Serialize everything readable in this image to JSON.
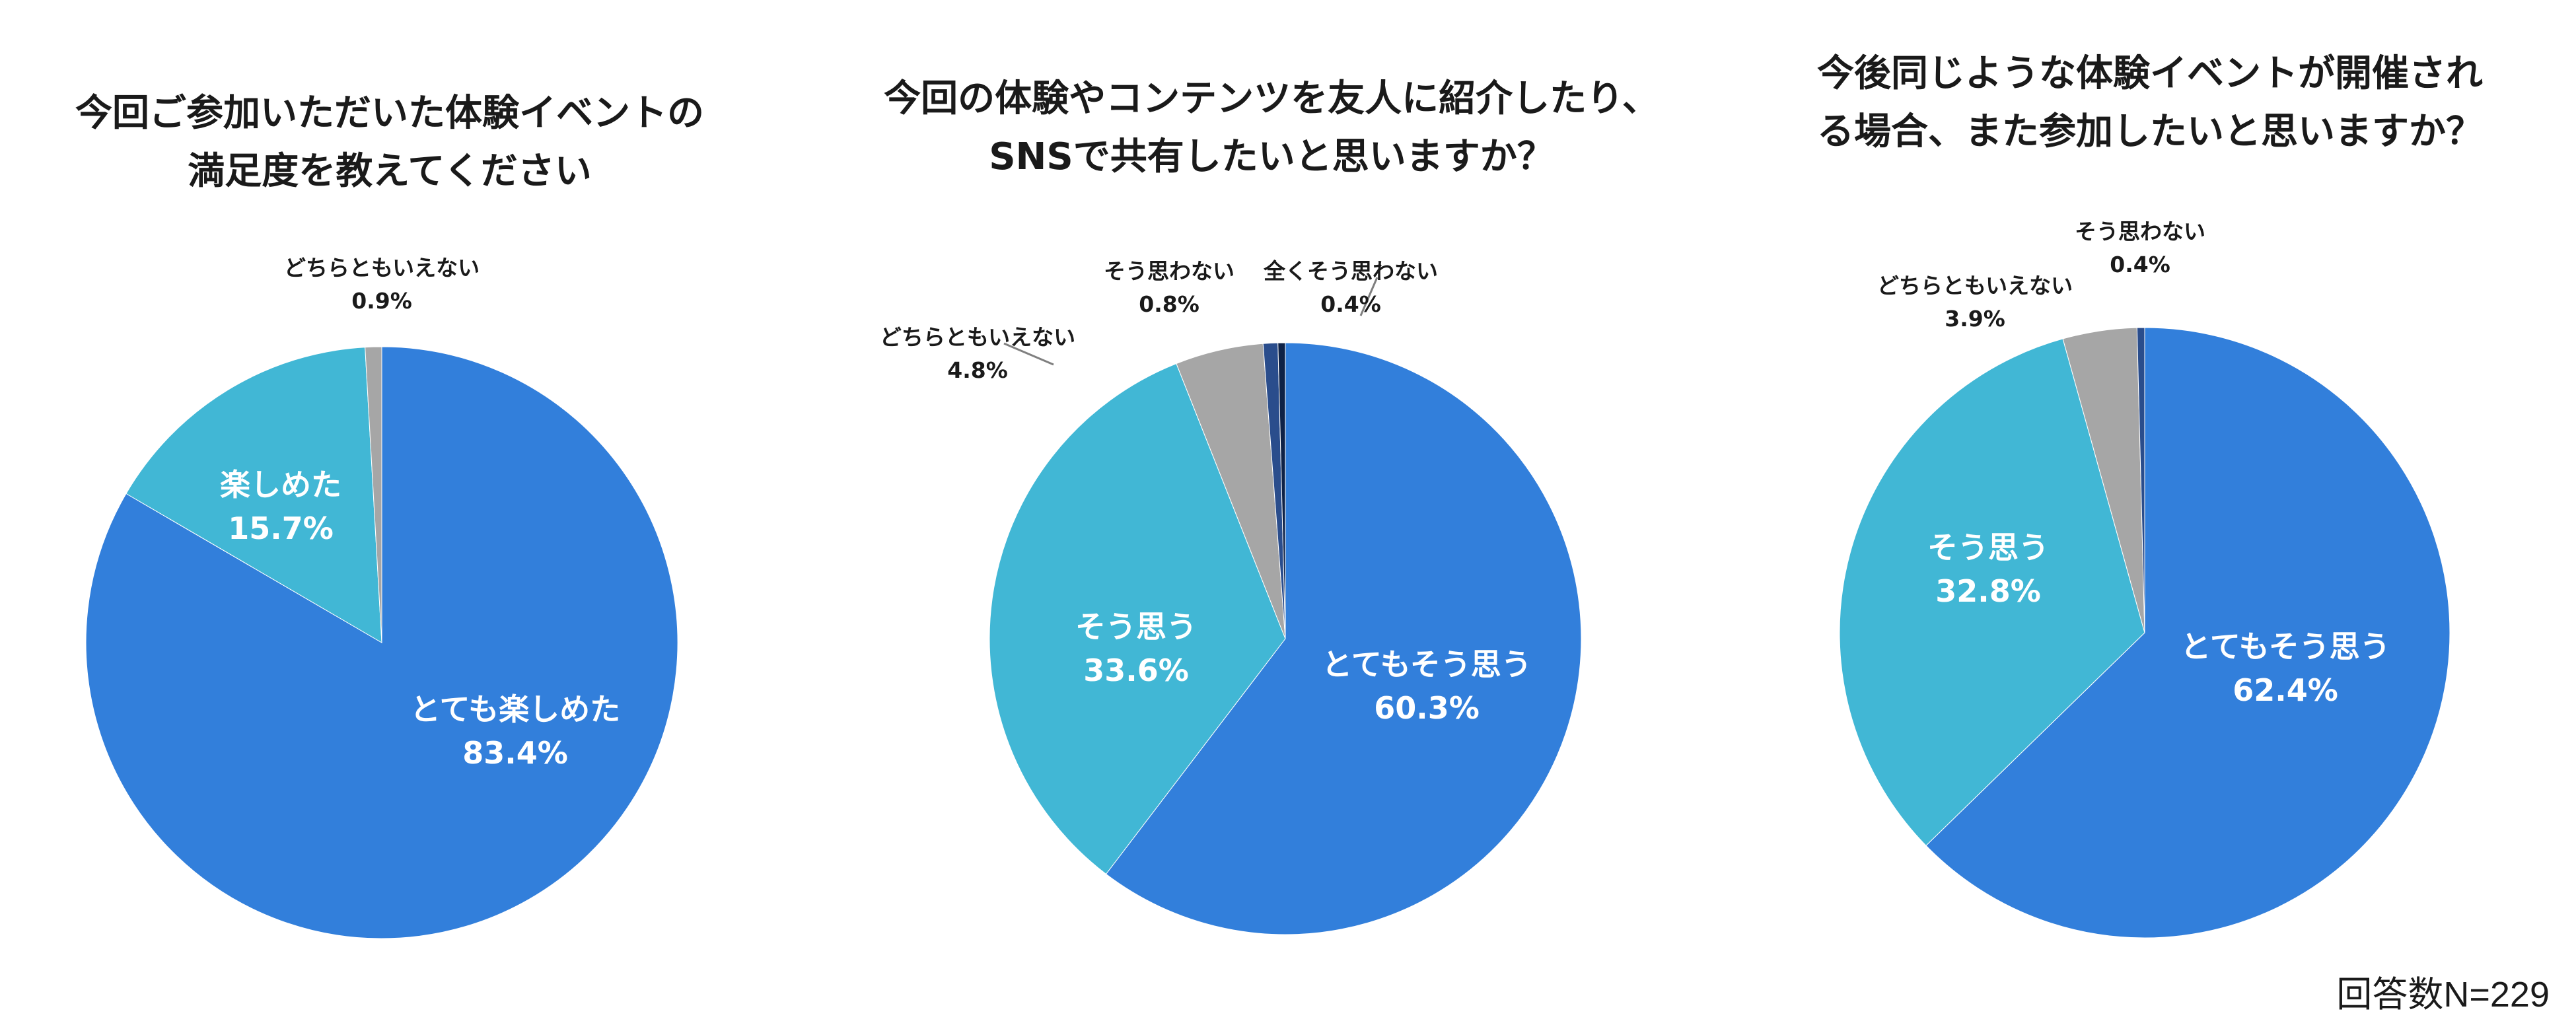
{
  "footer": "回答数N=229",
  "colors": {
    "very": "#327fdb",
    "yes": "#41b7d5",
    "neutral": "#a6a6a6",
    "no": "#2a4d8c",
    "not_at_all": "#0e2247",
    "label_inside": "#ffffff",
    "label_outside": "#1a1a1a"
  },
  "chart_data": [
    {
      "type": "pie",
      "title_lines": [
        "今回ご参加いただいた体験イベントの",
        "満足度を教えてください"
      ],
      "slices": [
        {
          "label": "とても楽しめた",
          "value": 83.4,
          "display": "83.4%",
          "color_key": "very",
          "label_pos": "inside"
        },
        {
          "label": "楽しめた",
          "value": 15.7,
          "display": "15.7%",
          "color_key": "yes",
          "label_pos": "inside"
        },
        {
          "label": "どちらともいえない",
          "value": 0.9,
          "display": "0.9%",
          "color_key": "neutral",
          "label_pos": "outside"
        }
      ]
    },
    {
      "type": "pie",
      "title_lines": [
        "今回の体験やコンテンツを友人に紹介したり、",
        "SNSで共有したいと思いますか？"
      ],
      "slices": [
        {
          "label": "とてもそう思う",
          "value": 60.3,
          "display": "60.3%",
          "color_key": "very",
          "label_pos": "inside"
        },
        {
          "label": "そう思う",
          "value": 33.6,
          "display": "33.6%",
          "color_key": "yes",
          "label_pos": "inside"
        },
        {
          "label": "どちらともいえない",
          "value": 4.8,
          "display": "4.8%",
          "color_key": "neutral",
          "label_pos": "outside"
        },
        {
          "label": "そう思わない",
          "value": 0.8,
          "display": "0.8%",
          "color_key": "no",
          "label_pos": "outside"
        },
        {
          "label": "全くそう思わない",
          "value": 0.4,
          "display": "0.4%",
          "color_key": "not_at_all",
          "label_pos": "outside"
        }
      ]
    },
    {
      "type": "pie",
      "title_lines": [
        "今後同じような体験イベントが開催され",
        "る場合、また参加したいと思いますか？"
      ],
      "slices": [
        {
          "label": "とてもそう思う",
          "value": 62.4,
          "display": "62.4%",
          "color_key": "very",
          "label_pos": "inside"
        },
        {
          "label": "そう思う",
          "value": 32.8,
          "display": "32.8%",
          "color_key": "yes",
          "label_pos": "inside"
        },
        {
          "label": "どちらともいえない",
          "value": 3.9,
          "display": "3.9%",
          "color_key": "neutral",
          "label_pos": "outside"
        },
        {
          "label": "そう思わない",
          "value": 0.4,
          "display": "0.4%",
          "color_key": "no",
          "label_pos": "outside"
        }
      ]
    }
  ]
}
